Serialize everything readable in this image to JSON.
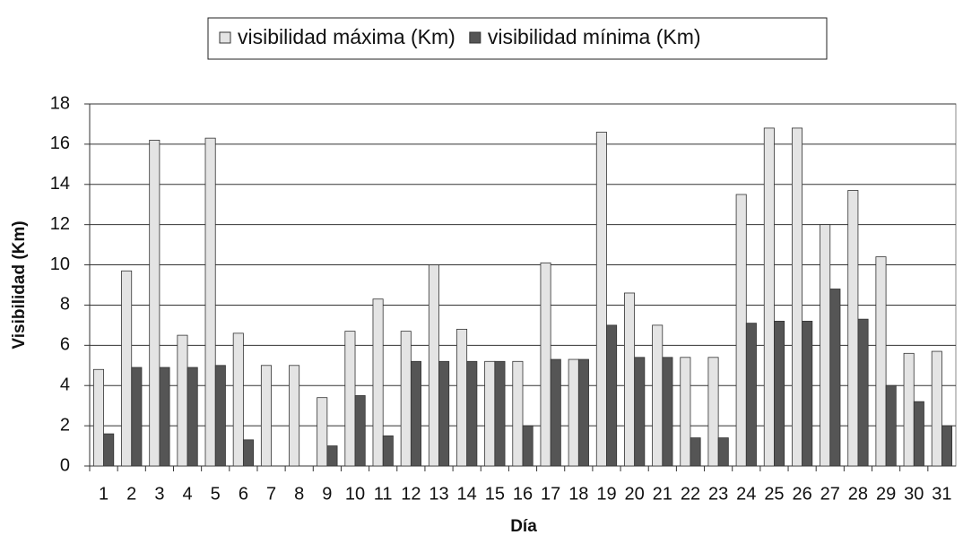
{
  "chart_data": {
    "type": "bar",
    "categories": [
      "1",
      "2",
      "3",
      "4",
      "5",
      "6",
      "7",
      "8",
      "9",
      "10",
      "11",
      "12",
      "13",
      "14",
      "15",
      "16",
      "17",
      "18",
      "19",
      "20",
      "21",
      "22",
      "23",
      "24",
      "25",
      "26",
      "27",
      "28",
      "29",
      "30",
      "31"
    ],
    "series": [
      {
        "name": "visibilidad máxima (Km)",
        "color": "#e4e4e4",
        "values": [
          4.8,
          9.7,
          16.2,
          6.5,
          16.3,
          6.6,
          5.0,
          5.0,
          3.4,
          6.7,
          8.3,
          6.7,
          10.0,
          6.8,
          5.2,
          5.2,
          10.1,
          5.3,
          16.6,
          8.6,
          7.0,
          5.4,
          5.4,
          13.5,
          16.8,
          16.8,
          12.0,
          13.7,
          10.4,
          5.6,
          5.7
        ]
      },
      {
        "name": "visibilidad mínima (Km)",
        "color": "#555555",
        "values": [
          1.6,
          4.9,
          4.9,
          4.9,
          5.0,
          1.3,
          0,
          0,
          1.0,
          3.5,
          1.5,
          5.2,
          5.2,
          5.2,
          5.2,
          2.0,
          5.3,
          5.3,
          7.0,
          5.4,
          5.4,
          1.4,
          1.4,
          7.1,
          7.2,
          7.2,
          8.8,
          7.3,
          4.0,
          3.2,
          2.0
        ]
      }
    ],
    "x_label": "Día",
    "y_label": "Visibilidad (Km)",
    "ylim": [
      0,
      18
    ],
    "yticks": [
      0,
      2,
      4,
      6,
      8,
      10,
      12,
      14,
      16,
      18
    ],
    "grid": true,
    "legend": "top"
  }
}
